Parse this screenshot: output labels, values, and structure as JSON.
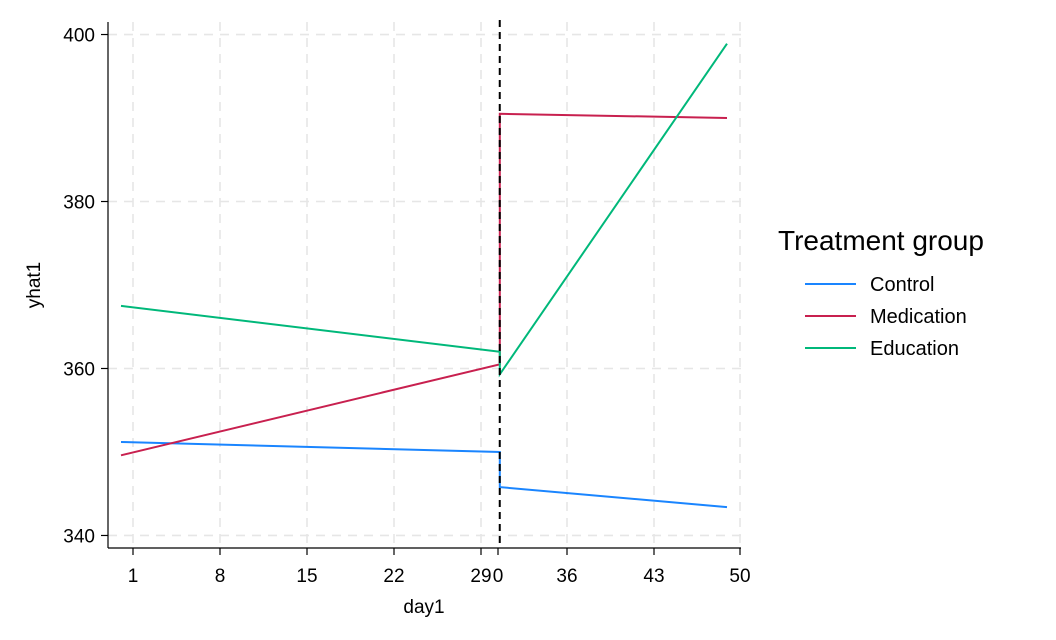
{
  "chart_data": {
    "type": "line",
    "xlabel": "day1",
    "ylabel": "yhat1",
    "x_tick_labels": [
      "1",
      "8",
      "15",
      "22",
      "29",
      "0",
      "36",
      "43",
      "50"
    ],
    "y_ticks": [
      340,
      360,
      380,
      400
    ],
    "ylim": [
      338.5,
      401.5
    ],
    "grid": true,
    "cutoff_label": "dashed vertical line at x = 30",
    "legend": {
      "title": "Treatment group",
      "position": "right"
    },
    "series": [
      {
        "name": "Control",
        "color": "#1a85ff",
        "pre": [
          [
            0,
            351.2
          ],
          [
            30,
            350.0
          ]
        ],
        "post": [
          [
            30,
            345.8
          ],
          [
            48,
            343.4
          ]
        ]
      },
      {
        "name": "Medication",
        "color": "#c8204f",
        "pre": [
          [
            0,
            349.6
          ],
          [
            30,
            360.5
          ]
        ],
        "post": [
          [
            30,
            390.5
          ],
          [
            48,
            390.0
          ]
        ]
      },
      {
        "name": "Education",
        "color": "#00b87a",
        "pre": [
          [
            0,
            367.5
          ],
          [
            30,
            362.0
          ]
        ],
        "post": [
          [
            30,
            359.3
          ],
          [
            48,
            398.9
          ]
        ]
      }
    ]
  }
}
